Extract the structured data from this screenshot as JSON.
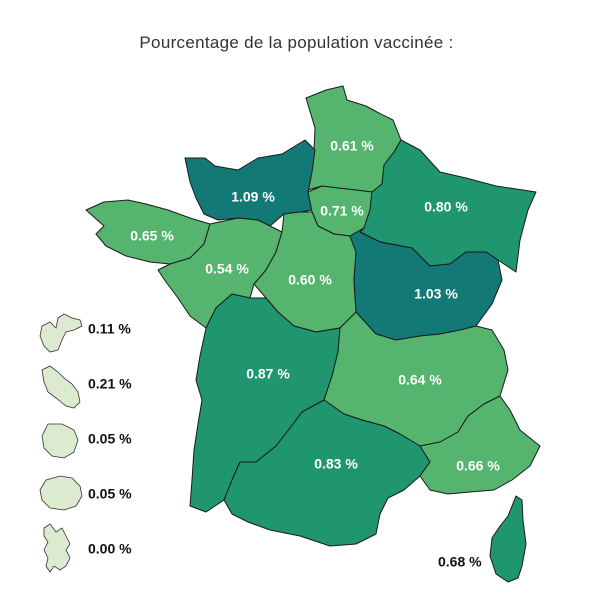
{
  "title": "Pourcentage de la population vaccinée :",
  "colors": {
    "light": "#55b56f",
    "medium": "#1f9670",
    "dark": "#137977",
    "pale": "#dcebcf"
  },
  "regions": [
    {
      "id": "hauts-de-france",
      "value": "0.61 %",
      "shade": "light"
    },
    {
      "id": "normandie",
      "value": "1.09 %",
      "shade": "dark"
    },
    {
      "id": "ile-de-france",
      "value": "0.71 %",
      "shade": "light"
    },
    {
      "id": "grand-est",
      "value": "0.80 %",
      "shade": "medium"
    },
    {
      "id": "bretagne",
      "value": "0.65 %",
      "shade": "light"
    },
    {
      "id": "pays-de-la-loire",
      "value": "0.54 %",
      "shade": "light"
    },
    {
      "id": "centre-val-de-loire",
      "value": "0.60 %",
      "shade": "light"
    },
    {
      "id": "bourgogne-franche-comte",
      "value": "1.03 %",
      "shade": "dark"
    },
    {
      "id": "nouvelle-aquitaine",
      "value": "0.87 %",
      "shade": "medium"
    },
    {
      "id": "auvergne-rhone-alpes",
      "value": "0.64 %",
      "shade": "light"
    },
    {
      "id": "occitanie",
      "value": "0.83 %",
      "shade": "medium"
    },
    {
      "id": "provence-alpes-cote-dazur",
      "value": "0.66 %",
      "shade": "light"
    },
    {
      "id": "corse",
      "value": "0.68 %",
      "shade": "medium"
    }
  ],
  "overseas": [
    {
      "id": "guadeloupe",
      "value": "0.11 %"
    },
    {
      "id": "martinique",
      "value": "0.21 %"
    },
    {
      "id": "guyane",
      "value": "0.05 %"
    },
    {
      "id": "la-reunion",
      "value": "0.05 %"
    },
    {
      "id": "mayotte",
      "value": "0.00 %"
    }
  ]
}
